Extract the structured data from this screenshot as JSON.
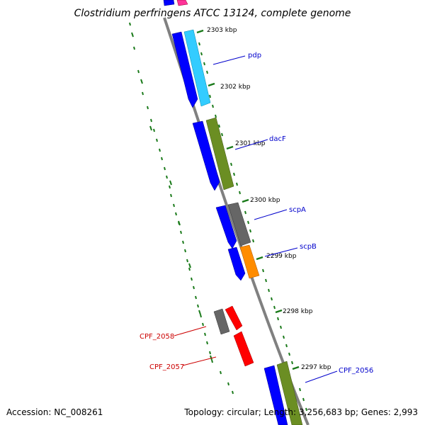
{
  "title": "Clostridium perfringens ATCC 13124, complete genome",
  "footer": {
    "accession": "Accession: NC_008261",
    "summary": "Topology: circular; Length: 3,256,683 bp; Genes: 2,993"
  },
  "ruler": {
    "ticks": [
      "2303 kbp",
      "2302 kbp",
      "2301 kbp",
      "2300 kbp",
      "2299 kbp",
      "2298 kbp",
      "2297 kbp"
    ]
  },
  "gene_labels": {
    "pdp": "pdp",
    "dacF": "dacF",
    "scpA": "scpA",
    "scpB": "scpB",
    "CPF_2058": "CPF_2058",
    "CPF_2057": "CPF_2057",
    "CPF_2056": "CPF_2056"
  },
  "colors": {
    "backbone": "#808080",
    "ruler": "#1a7a1a",
    "cds_blue": "#0000ff",
    "cyan": "#33ccff",
    "olive": "#6b8e23",
    "gray": "#666666",
    "orange": "#ff8c00",
    "red": "#ff0000",
    "magenta": "#ff3399",
    "label_blue": "#0000cc",
    "label_red": "#cc0000"
  }
}
